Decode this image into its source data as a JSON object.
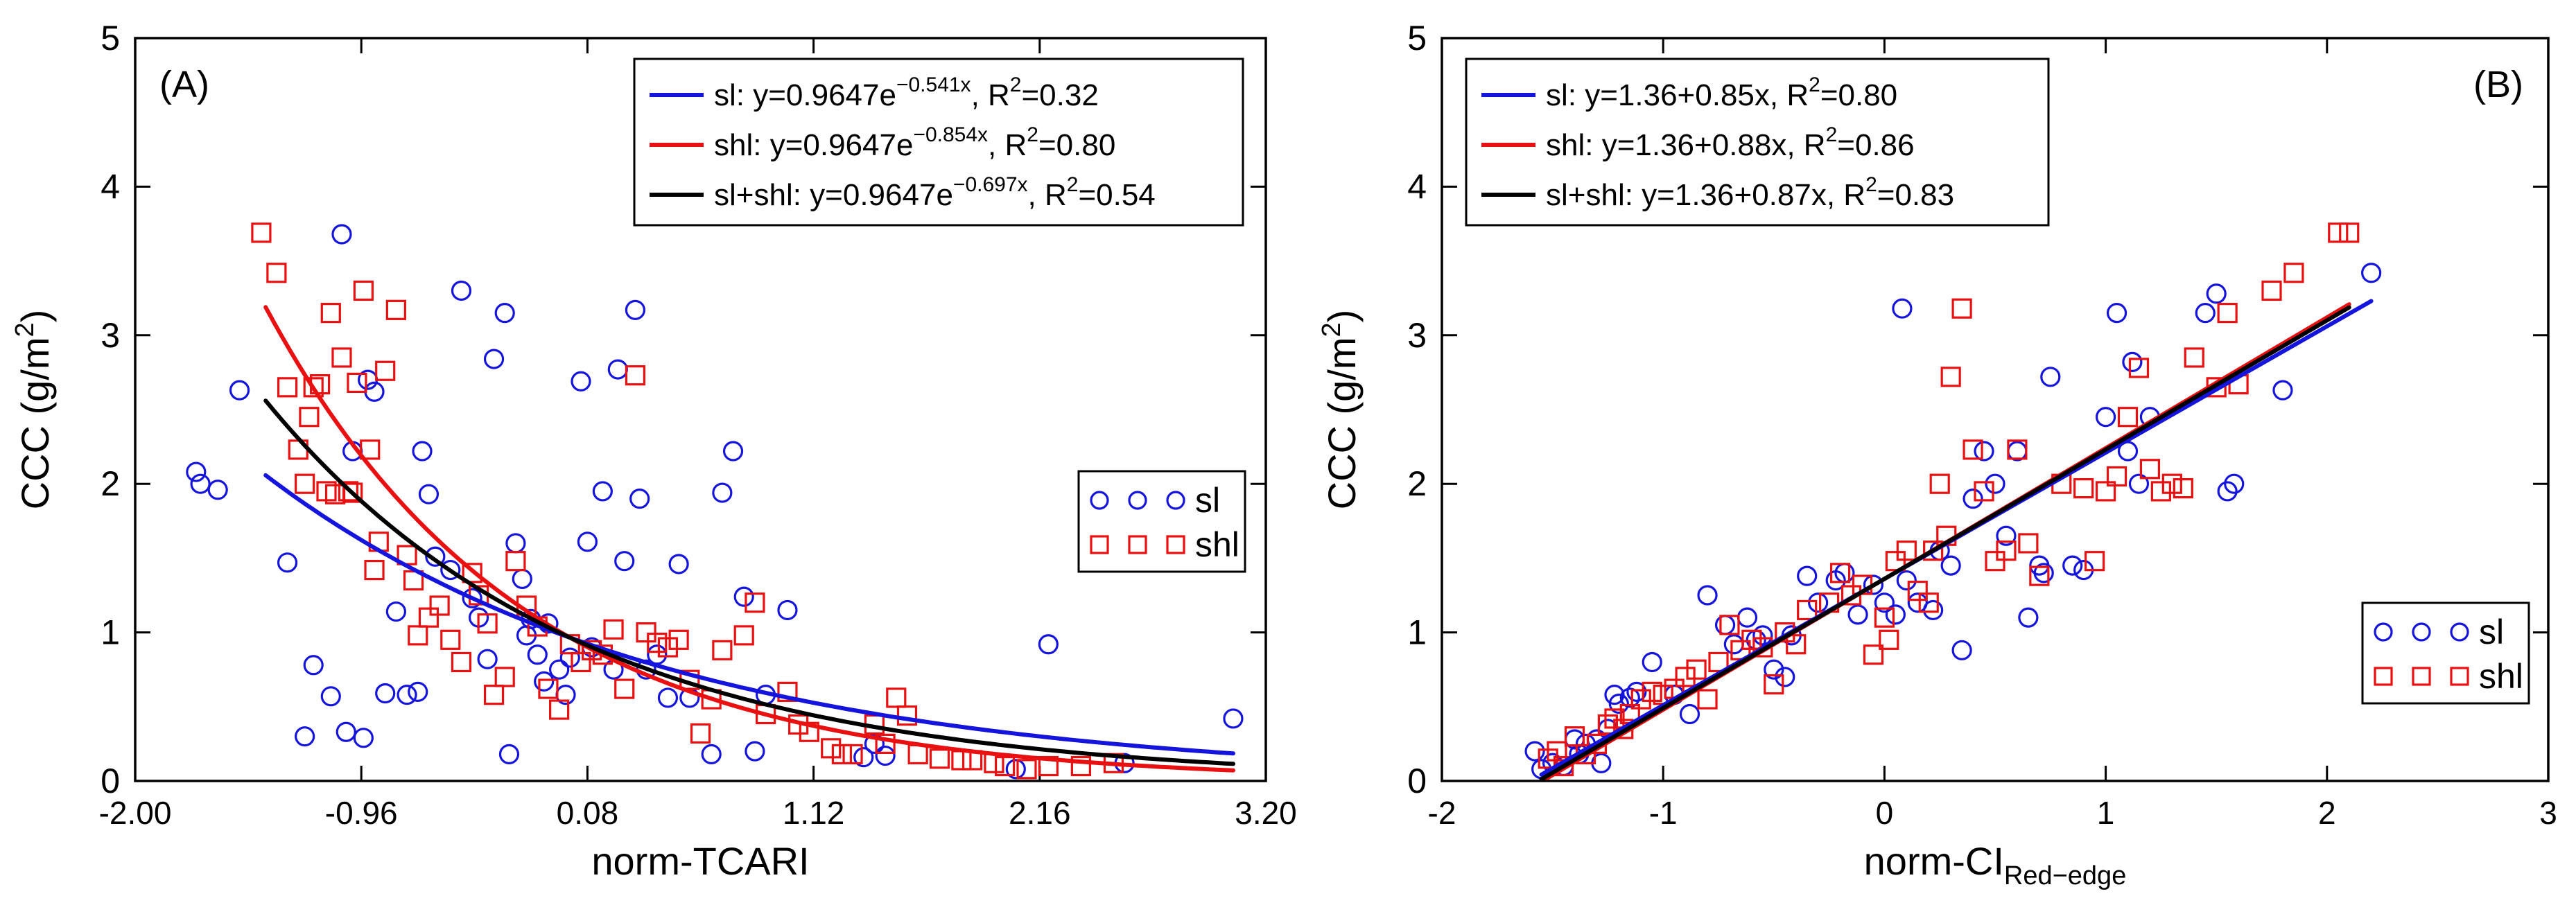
{
  "chart_data": [
    {
      "panel": "(A)",
      "type": "scatter",
      "xlabel": "norm-TCARI",
      "ylabel": "CCC (g/m",
      "ylabel_sup": "2",
      "ylabel_end": ")",
      "xlim": [
        -2.0,
        3.2
      ],
      "ylim": [
        0,
        5
      ],
      "xticks": [
        "-2.00",
        "-0.96",
        "0.08",
        "1.12",
        "2.16",
        "3.20"
      ],
      "yticks": [
        "0",
        "1",
        "2",
        "3",
        "4",
        "5"
      ],
      "legend_lines": [
        {
          "prefix": "sl: y=0.9647e",
          "sup": "−0.541x",
          "mid": ", R",
          "sup2": "2",
          "suffix": "=0.32",
          "color": "#1414dc"
        },
        {
          "prefix": "shl: y=0.9647e",
          "sup": "−0.854x",
          "mid": ", R",
          "sup2": "2",
          "suffix": "=0.80",
          "color": "#e81010"
        },
        {
          "prefix": "sl+shl: y=0.9647e",
          "sup": "−0.697x",
          "mid": ", R",
          "sup2": "2",
          "suffix": "=0.54",
          "color": "#000000"
        }
      ],
      "marker_legend": [
        {
          "label": "sl",
          "marker": "circle",
          "color": "#1414dc"
        },
        {
          "label": "shl",
          "marker": "square",
          "color": "#e81010"
        }
      ],
      "series": [
        {
          "name": "sl",
          "marker": "circle",
          "color": "#1414dc",
          "x": [
            -1.72,
            -1.7,
            -1.62,
            -1.52,
            -1.3,
            -1.22,
            -1.18,
            -1.1,
            -1.05,
            -1.03,
            -1.0,
            -0.95,
            -0.93,
            -0.9,
            -0.85,
            -0.8,
            -0.75,
            -0.7,
            -0.68,
            -0.65,
            -0.62,
            -0.55,
            -0.5,
            -0.45,
            -0.42,
            -0.38,
            -0.35,
            -0.3,
            -0.28,
            -0.25,
            -0.22,
            -0.2,
            -0.18,
            -0.15,
            -0.12,
            -0.1,
            -0.05,
            -0.02,
            0.0,
            0.05,
            0.08,
            0.1,
            0.15,
            0.2,
            0.22,
            0.25,
            0.3,
            0.32,
            0.35,
            0.4,
            0.45,
            0.5,
            0.55,
            0.65,
            0.7,
            0.75,
            0.8,
            0.85,
            0.9,
            1.0,
            1.35,
            1.4,
            1.45,
            2.05,
            2.2,
            2.55,
            3.05
          ],
          "y": [
            2.08,
            2.0,
            1.96,
            2.63,
            1.47,
            0.3,
            0.78,
            0.57,
            3.68,
            0.33,
            2.22,
            0.29,
            2.7,
            2.62,
            0.59,
            1.14,
            0.58,
            0.6,
            2.22,
            1.93,
            1.51,
            1.42,
            3.3,
            1.23,
            1.1,
            0.82,
            2.84,
            3.15,
            0.18,
            1.6,
            1.36,
            0.98,
            1.09,
            0.85,
            0.67,
            1.06,
            0.75,
            0.58,
            0.83,
            2.69,
            1.61,
            0.9,
            1.95,
            0.75,
            2.77,
            1.48,
            3.17,
            1.9,
            0.75,
            0.85,
            0.56,
            1.46,
            0.56,
            0.18,
            1.94,
            2.22,
            1.24,
            0.2,
            0.58,
            1.15,
            0.16,
            0.25,
            0.17,
            0.08,
            0.92,
            0.12,
            0.42
          ]
        },
        {
          "name": "shl",
          "marker": "square",
          "color": "#e81010",
          "x": [
            -1.42,
            -1.35,
            -1.3,
            -1.25,
            -1.22,
            -1.2,
            -1.18,
            -1.15,
            -1.12,
            -1.1,
            -1.08,
            -1.05,
            -1.02,
            -1.0,
            -0.98,
            -0.95,
            -0.92,
            -0.9,
            -0.88,
            -0.85,
            -0.8,
            -0.75,
            -0.72,
            -0.7,
            -0.65,
            -0.6,
            -0.55,
            -0.5,
            -0.45,
            -0.42,
            -0.38,
            -0.35,
            -0.3,
            -0.25,
            -0.2,
            -0.15,
            -0.1,
            -0.05,
            0.0,
            0.05,
            0.1,
            0.15,
            0.2,
            0.25,
            0.3,
            0.35,
            0.4,
            0.45,
            0.5,
            0.55,
            0.6,
            0.65,
            0.7,
            0.8,
            0.85,
            0.9,
            1.0,
            1.05,
            1.1,
            1.2,
            1.25,
            1.3,
            1.4,
            1.45,
            1.5,
            1.55,
            1.6,
            1.7,
            1.8,
            1.85,
            1.95,
            2.0,
            2.1,
            2.2,
            2.35,
            2.5
          ],
          "y": [
            3.69,
            3.42,
            2.65,
            2.23,
            2.0,
            2.45,
            2.65,
            2.67,
            1.95,
            3.15,
            1.93,
            2.85,
            1.95,
            1.94,
            2.68,
            3.3,
            2.23,
            1.42,
            1.61,
            2.76,
            3.17,
            1.52,
            1.35,
            0.98,
            1.1,
            1.18,
            0.95,
            0.8,
            1.4,
            1.25,
            1.06,
            0.58,
            0.7,
            1.48,
            1.18,
            1.04,
            0.62,
            0.48,
            0.92,
            0.8,
            0.88,
            0.85,
            1.02,
            0.62,
            2.73,
            1.0,
            0.93,
            0.9,
            0.95,
            0.68,
            0.32,
            0.55,
            0.88,
            0.98,
            1.2,
            0.45,
            0.6,
            0.38,
            0.33,
            0.22,
            0.18,
            0.18,
            0.38,
            0.25,
            0.56,
            0.44,
            0.18,
            0.15,
            0.14,
            0.14,
            0.12,
            0.1,
            0.08,
            0.1,
            0.1,
            0.12
          ]
        }
      ],
      "fits": [
        {
          "name": "sl",
          "a": 0.9647,
          "b": -0.541,
          "x_range": [
            -1.4,
            3.05
          ],
          "color": "#1414dc"
        },
        {
          "name": "shl",
          "a": 0.9647,
          "b": -0.854,
          "x_range": [
            -1.4,
            3.05
          ],
          "color": "#e81010"
        },
        {
          "name": "sl+shl",
          "a": 0.9647,
          "b": -0.697,
          "x_range": [
            -1.4,
            3.05
          ],
          "color": "#000000"
        }
      ]
    },
    {
      "panel": "(B)",
      "type": "scatter",
      "xlabel": "norm-CI",
      "xlabel_sub": "Red−edge",
      "ylabel": "CCC (g/m",
      "ylabel_sup": "2",
      "ylabel_end": ")",
      "xlim": [
        -2,
        3
      ],
      "ylim": [
        0,
        5
      ],
      "xticks": [
        "-2",
        "-1",
        "0",
        "1",
        "2",
        "3"
      ],
      "yticks": [
        "0",
        "1",
        "2",
        "3",
        "4",
        "5"
      ],
      "legend_lines": [
        {
          "prefix": "sl: y=1.36+0.85x, R",
          "sup": "2",
          "suffix": "=0.80",
          "color": "#1414dc"
        },
        {
          "prefix": "shl: y=1.36+0.88x, R",
          "sup": "2",
          "suffix": "=0.86",
          "color": "#e81010"
        },
        {
          "prefix": "sl+shl: y=1.36+0.87x, R",
          "sup": "2",
          "suffix": "=0.83",
          "color": "#000000"
        }
      ],
      "marker_legend": [
        {
          "label": "sl",
          "marker": "circle",
          "color": "#1414dc"
        },
        {
          "label": "shl",
          "marker": "square",
          "color": "#e81010"
        }
      ],
      "series": [
        {
          "name": "sl",
          "marker": "circle",
          "color": "#1414dc",
          "x": [
            -1.58,
            -1.55,
            -1.5,
            -1.45,
            -1.4,
            -1.38,
            -1.35,
            -1.3,
            -1.28,
            -1.25,
            -1.22,
            -1.2,
            -1.15,
            -1.12,
            -1.05,
            -0.95,
            -0.88,
            -0.8,
            -0.72,
            -0.68,
            -0.62,
            -0.58,
            -0.55,
            -0.5,
            -0.45,
            -0.42,
            -0.35,
            -0.3,
            -0.22,
            -0.18,
            -0.12,
            -0.05,
            0.0,
            0.05,
            0.08,
            0.1,
            0.15,
            0.22,
            0.25,
            0.3,
            0.35,
            0.4,
            0.45,
            0.5,
            0.55,
            0.6,
            0.65,
            0.7,
            0.72,
            0.75,
            0.85,
            0.9,
            1.0,
            1.05,
            1.1,
            1.12,
            1.15,
            1.2,
            1.45,
            1.5,
            1.55,
            1.58,
            1.8,
            2.2
          ],
          "y": [
            0.2,
            0.08,
            0.12,
            0.1,
            0.28,
            0.18,
            0.25,
            0.28,
            0.12,
            0.35,
            0.58,
            0.52,
            0.56,
            0.6,
            0.8,
            0.58,
            0.45,
            1.25,
            1.05,
            0.92,
            1.1,
            0.95,
            0.98,
            0.75,
            0.7,
            0.98,
            1.38,
            1.2,
            1.35,
            1.4,
            1.12,
            1.32,
            1.2,
            1.12,
            3.18,
            1.35,
            1.2,
            1.15,
            1.55,
            1.45,
            0.88,
            1.9,
            2.22,
            2.0,
            1.65,
            2.22,
            1.1,
            1.45,
            1.4,
            2.72,
            1.45,
            1.42,
            2.45,
            3.15,
            2.22,
            2.82,
            2.0,
            2.45,
            3.15,
            3.28,
            1.95,
            2.0,
            2.63,
            3.42
          ]
        },
        {
          "name": "shl",
          "marker": "square",
          "color": "#e81010",
          "x": [
            -1.52,
            -1.48,
            -1.45,
            -1.4,
            -1.35,
            -1.3,
            -1.25,
            -1.22,
            -1.18,
            -1.15,
            -1.1,
            -1.05,
            -1.0,
            -0.95,
            -0.9,
            -0.85,
            -0.8,
            -0.75,
            -0.7,
            -0.65,
            -0.6,
            -0.55,
            -0.5,
            -0.45,
            -0.4,
            -0.35,
            -0.25,
            -0.2,
            -0.15,
            -0.1,
            -0.05,
            0.0,
            0.02,
            0.05,
            0.1,
            0.15,
            0.2,
            0.22,
            0.25,
            0.28,
            0.3,
            0.35,
            0.4,
            0.45,
            0.5,
            0.55,
            0.6,
            0.65,
            0.7,
            0.8,
            0.9,
            0.95,
            1.0,
            1.05,
            1.1,
            1.15,
            1.2,
            1.25,
            1.3,
            1.35,
            1.4,
            1.5,
            1.55,
            1.6,
            1.75,
            1.85,
            2.05,
            2.1
          ],
          "y": [
            0.15,
            0.2,
            0.1,
            0.3,
            0.18,
            0.25,
            0.38,
            0.42,
            0.35,
            0.45,
            0.55,
            0.6,
            0.58,
            0.62,
            0.7,
            0.75,
            0.55,
            0.8,
            1.05,
            0.88,
            0.95,
            0.9,
            0.65,
            1.0,
            0.92,
            1.15,
            1.2,
            1.4,
            1.25,
            1.32,
            0.85,
            1.1,
            0.95,
            1.48,
            1.55,
            1.28,
            1.2,
            1.55,
            2.0,
            1.65,
            2.72,
            3.18,
            2.23,
            1.95,
            1.48,
            1.55,
            2.23,
            1.6,
            1.38,
            2.0,
            1.97,
            1.48,
            1.95,
            2.05,
            2.45,
            2.78,
            2.1,
            1.95,
            2.0,
            1.97,
            2.85,
            2.65,
            3.15,
            2.67,
            3.3,
            3.42,
            3.69,
            3.69
          ]
        }
      ],
      "fits": [
        {
          "name": "sl",
          "intercept": 1.36,
          "slope": 0.85,
          "x_range": [
            -1.55,
            2.2
          ],
          "color": "#1414dc"
        },
        {
          "name": "shl",
          "intercept": 1.36,
          "slope": 0.88,
          "x_range": [
            -1.55,
            2.1
          ],
          "color": "#e81010"
        },
        {
          "name": "sl+shl",
          "intercept": 1.36,
          "slope": 0.87,
          "x_range": [
            -1.55,
            2.1
          ],
          "color": "#000000"
        }
      ]
    }
  ]
}
